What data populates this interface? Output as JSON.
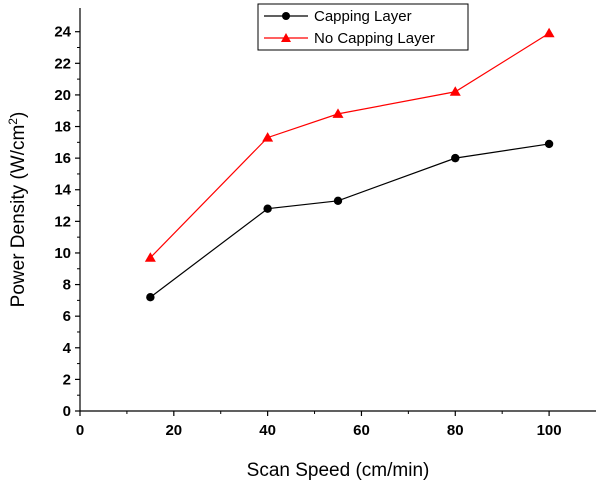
{
  "chart_data": {
    "type": "line",
    "xlabel": "Scan Speed (cm/min)",
    "ylabel": "Power Density (W/cm",
    "ylabel_superscript": "2",
    "ylabel_close": ")",
    "xlim": [
      0,
      110
    ],
    "ylim": [
      0,
      25.5
    ],
    "xticks": [
      0,
      20,
      40,
      60,
      80,
      100
    ],
    "yticks": [
      0,
      2,
      4,
      6,
      8,
      10,
      12,
      14,
      16,
      18,
      20,
      22,
      24
    ],
    "grid": false,
    "legend_position": "top-right",
    "series": [
      {
        "name": "Capping Layer",
        "color": "#000000",
        "marker": "circle",
        "x": [
          15,
          40,
          55,
          80,
          100
        ],
        "y": [
          7.2,
          12.8,
          13.3,
          16.0,
          16.9
        ]
      },
      {
        "name": "No Capping Layer",
        "color": "#ff0000",
        "marker": "triangle",
        "x": [
          15,
          40,
          55,
          80,
          100
        ],
        "y": [
          9.7,
          17.3,
          18.8,
          20.2,
          23.9
        ]
      }
    ]
  }
}
